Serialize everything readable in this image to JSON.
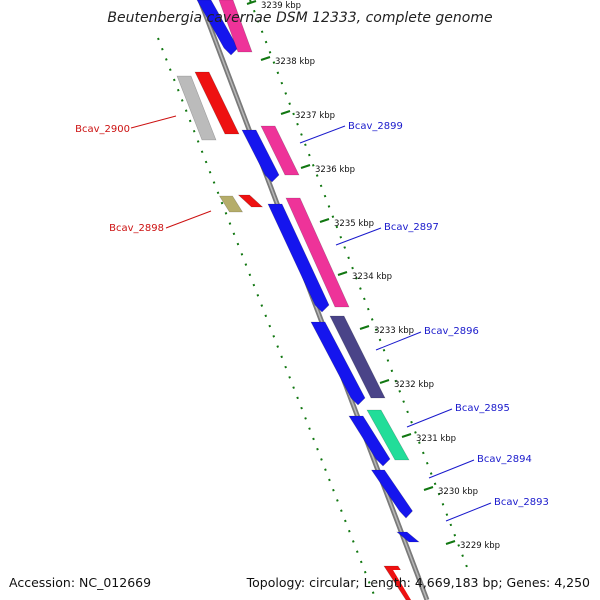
{
  "title": "Beutenbergia cavernae DSM 12333, complete genome",
  "accession": "Accession: NC_012669",
  "summary": "Topology: circular; Length: 4,669,183 bp; Genes: 4,250",
  "kbp_labels": [
    "3239 kbp",
    "3238 kbp",
    "3237 kbp",
    "3236 kbp",
    "3235 kbp",
    "3234 kbp",
    "3233 kbp",
    "3232 kbp",
    "3231 kbp",
    "3230 kbp",
    "3229 kbp"
  ],
  "gene_labels": [
    {
      "name": "Bcav_2900",
      "strand": "reverse"
    },
    {
      "name": "Bcav_2899",
      "strand": "forward"
    },
    {
      "name": "Bcav_2898",
      "strand": "reverse"
    },
    {
      "name": "Bcav_2897",
      "strand": "forward"
    },
    {
      "name": "Bcav_2896",
      "strand": "forward"
    },
    {
      "name": "Bcav_2895",
      "strand": "forward"
    },
    {
      "name": "Bcav_2894",
      "strand": "forward"
    },
    {
      "name": "Bcav_2893",
      "strand": "forward"
    }
  ],
  "colors": {
    "forward_label": "#1a1acc",
    "reverse_label": "#cc1111",
    "backbone": "#7a7a7a",
    "tick": "#117711",
    "cds_forward": "#1515ee",
    "cds_reverse": "#ee1111",
    "magenta": "#ee3399",
    "slate": "#4a4488",
    "spring_green": "#22dd99",
    "gray": "#bbbbbb",
    "olive": "#b5ad6a"
  }
}
